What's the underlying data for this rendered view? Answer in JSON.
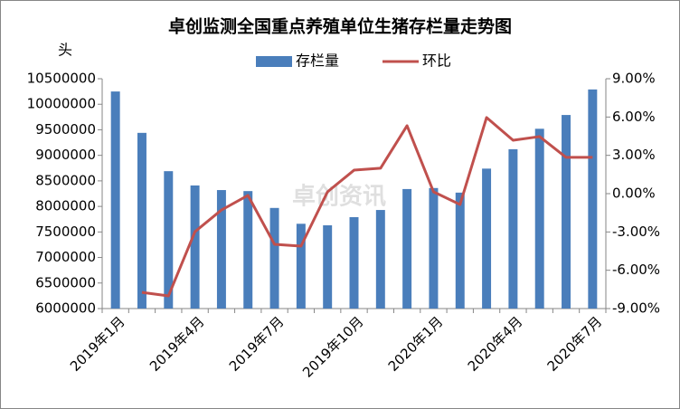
{
  "chart_data": {
    "type": "bar_line",
    "title": "卓创监测全国重点养殖单位生猪存栏量走势图",
    "y_label": "头",
    "watermark": "卓创资讯",
    "categories": [
      "2019年1月",
      null,
      null,
      "2019年4月",
      null,
      null,
      "2019年7月",
      null,
      null,
      "2019年10月",
      null,
      null,
      "2020年1月",
      null,
      null,
      "2020年4月",
      null,
      null,
      "2020年7月"
    ],
    "series": [
      {
        "name": "存栏量",
        "type": "bar",
        "color": "#4a7ebb",
        "axis": "y",
        "values": [
          10250000,
          9440000,
          8690000,
          8410000,
          8320000,
          8300000,
          7970000,
          7660000,
          7630000,
          7790000,
          7930000,
          8340000,
          8360000,
          8270000,
          8740000,
          9120000,
          9520000,
          9790000,
          10290000
        ]
      },
      {
        "name": "环比",
        "type": "line",
        "color": "#c0504d",
        "axis": "y2",
        "values": [
          null,
          -7.73,
          -8.01,
          -2.98,
          -1.28,
          -0.14,
          -3.97,
          -4.11,
          0.14,
          1.84,
          1.99,
          5.32,
          0.14,
          -0.85,
          5.96,
          4.18,
          4.47,
          2.84,
          2.84
        ]
      }
    ],
    "ylim": [
      6000000,
      10500000
    ],
    "yticks": [
      6000000,
      6500000,
      7000000,
      7500000,
      8000000,
      8500000,
      9000000,
      9500000,
      10000000,
      10500000
    ],
    "y2lim": [
      -9,
      9
    ],
    "y2ticks": [
      {
        "value": -9,
        "label": "-9.00%"
      },
      {
        "value": -6,
        "label": "-6.00%"
      },
      {
        "value": -3,
        "label": "-3.00%"
      },
      {
        "value": 0,
        "label": "0.00%"
      },
      {
        "value": 3,
        "label": "3.00%"
      },
      {
        "value": 6,
        "label": "6.00%"
      },
      {
        "value": 9,
        "label": "9.00%"
      }
    ],
    "legend": "top"
  }
}
